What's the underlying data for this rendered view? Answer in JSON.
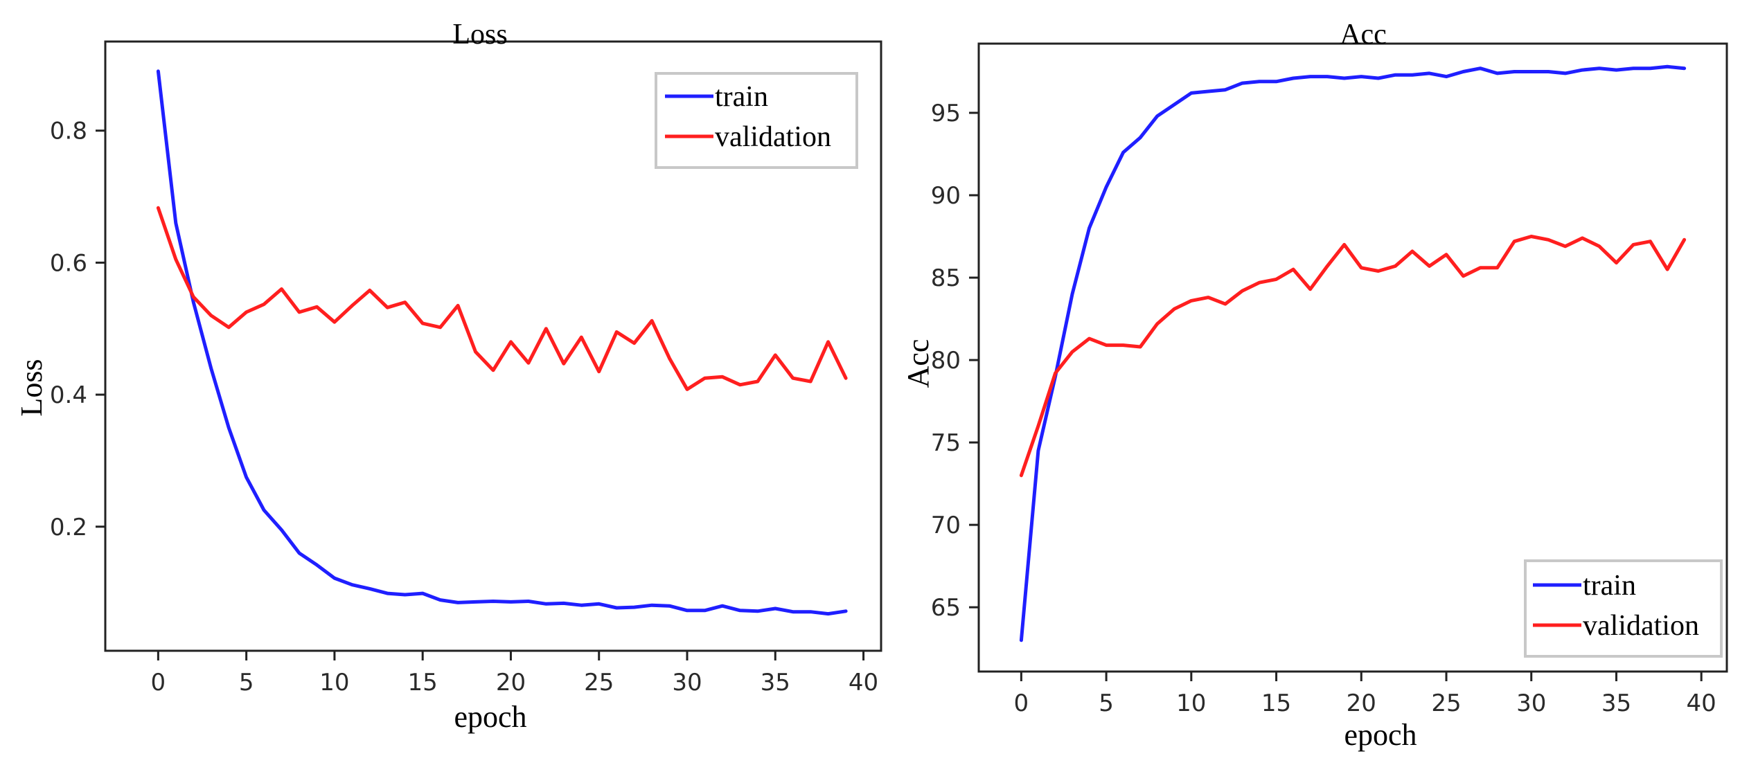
{
  "chart_data": [
    {
      "type": "line",
      "title": "Loss",
      "xlabel": "epoch",
      "ylabel": "Loss",
      "xlim": [
        -3,
        41
      ],
      "ylim": [
        0.012,
        0.935
      ],
      "xticks": [
        0,
        5,
        10,
        15,
        20,
        25,
        30,
        35,
        40
      ],
      "yticks": [
        0.2,
        0.4,
        0.6,
        0.8
      ],
      "ytick_labels": [
        "0.2",
        "0.4",
        "0.6",
        "0.8"
      ],
      "legend_position": "top-right",
      "grid": false,
      "x": [
        0,
        1,
        2,
        3,
        4,
        5,
        6,
        7,
        8,
        9,
        10,
        11,
        12,
        13,
        14,
        15,
        16,
        17,
        18,
        19,
        20,
        21,
        22,
        23,
        24,
        25,
        26,
        27,
        28,
        29,
        30,
        31,
        32,
        33,
        34,
        35,
        36,
        37,
        38,
        39
      ],
      "series": [
        {
          "name": "train",
          "color": "#1f1fff",
          "values": [
            0.89,
            0.66,
            0.54,
            0.44,
            0.35,
            0.275,
            0.225,
            0.195,
            0.16,
            0.142,
            0.122,
            0.112,
            0.106,
            0.099,
            0.097,
            0.099,
            0.089,
            0.085,
            0.086,
            0.087,
            0.086,
            0.087,
            0.083,
            0.084,
            0.081,
            0.083,
            0.077,
            0.078,
            0.081,
            0.08,
            0.073,
            0.073,
            0.08,
            0.073,
            0.072,
            0.076,
            0.071,
            0.071,
            0.068,
            0.072
          ]
        },
        {
          "name": "validation",
          "color": "#ff1f1f",
          "values": [
            0.683,
            0.605,
            0.548,
            0.52,
            0.502,
            0.525,
            0.537,
            0.56,
            0.525,
            0.533,
            0.51,
            0.535,
            0.558,
            0.532,
            0.54,
            0.508,
            0.502,
            0.535,
            0.465,
            0.437,
            0.48,
            0.448,
            0.5,
            0.447,
            0.487,
            0.435,
            0.495,
            0.478,
            0.512,
            0.455,
            0.408,
            0.425,
            0.427,
            0.415,
            0.42,
            0.46,
            0.425,
            0.42,
            0.48,
            0.425
          ]
        }
      ]
    },
    {
      "type": "line",
      "title": "Acc",
      "xlabel": "epoch",
      "ylabel": "Acc",
      "xlim": [
        -2.5,
        41.5
      ],
      "ylim": [
        61.1,
        99.2
      ],
      "xticks": [
        0,
        5,
        10,
        15,
        20,
        25,
        30,
        35,
        40
      ],
      "yticks": [
        65,
        70,
        75,
        80,
        85,
        90,
        95
      ],
      "ytick_labels": [
        "65",
        "70",
        "75",
        "80",
        "85",
        "90",
        "95"
      ],
      "legend_position": "bottom-right",
      "grid": false,
      "x": [
        0,
        1,
        2,
        3,
        4,
        5,
        6,
        7,
        8,
        9,
        10,
        11,
        12,
        13,
        14,
        15,
        16,
        17,
        18,
        19,
        20,
        21,
        22,
        23,
        24,
        25,
        26,
        27,
        28,
        29,
        30,
        31,
        32,
        33,
        34,
        35,
        36,
        37,
        38,
        39
      ],
      "series": [
        {
          "name": "train",
          "color": "#1f1fff",
          "values": [
            63.0,
            74.5,
            79.0,
            84.0,
            88.0,
            90.5,
            92.6,
            93.5,
            94.8,
            95.5,
            96.2,
            96.3,
            96.4,
            96.8,
            96.9,
            96.9,
            97.1,
            97.2,
            97.2,
            97.1,
            97.2,
            97.1,
            97.3,
            97.3,
            97.4,
            97.2,
            97.5,
            97.7,
            97.4,
            97.5,
            97.5,
            97.5,
            97.4,
            97.6,
            97.7,
            97.6,
            97.7,
            97.7,
            97.8,
            97.7
          ]
        },
        {
          "name": "validation",
          "color": "#ff1f1f",
          "values": [
            73.0,
            76.0,
            79.2,
            80.5,
            81.3,
            80.9,
            80.9,
            80.8,
            82.2,
            83.1,
            83.6,
            83.8,
            83.4,
            84.2,
            84.7,
            84.9,
            85.5,
            84.3,
            85.7,
            87.0,
            85.6,
            85.4,
            85.7,
            86.6,
            85.7,
            86.4,
            85.1,
            85.6,
            85.6,
            87.2,
            87.5,
            87.3,
            86.9,
            87.4,
            86.9,
            85.9,
            87.0,
            87.2,
            85.5,
            87.3
          ]
        }
      ]
    }
  ]
}
